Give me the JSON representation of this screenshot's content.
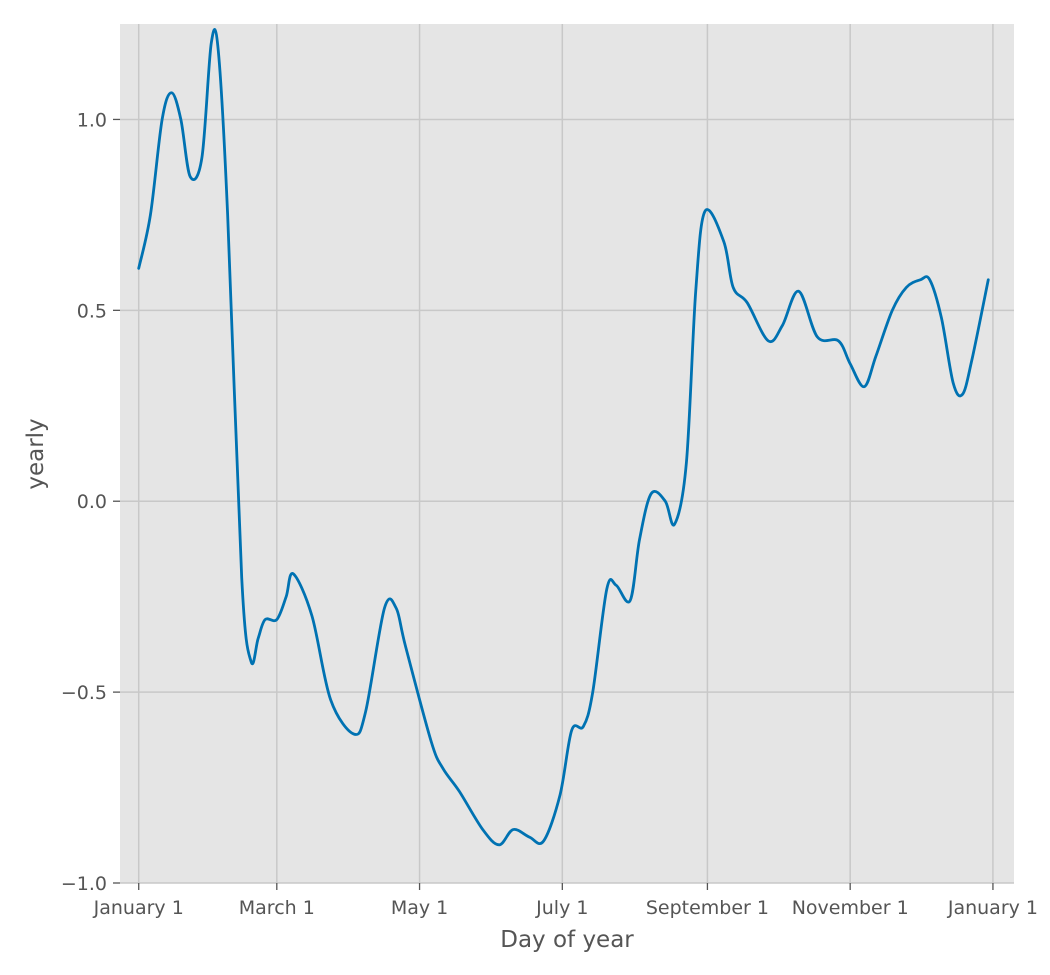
{
  "chart_data": {
    "type": "line",
    "title": "",
    "xlabel": "Day of year",
    "ylabel": "yearly",
    "xlim": [
      "2017-12-24",
      "2019-01-10"
    ],
    "ylim": [
      -1.0,
      1.25
    ],
    "x_ticks": [
      {
        "date": "2018-01-01",
        "label": "January 1"
      },
      {
        "date": "2018-03-01",
        "label": "March 1"
      },
      {
        "date": "2018-05-01",
        "label": "May 1"
      },
      {
        "date": "2018-07-01",
        "label": "July 1"
      },
      {
        "date": "2018-09-01",
        "label": "September 1"
      },
      {
        "date": "2018-11-01",
        "label": "November 1"
      },
      {
        "date": "2019-01-01",
        "label": "January 1"
      }
    ],
    "y_ticks": [
      {
        "value": -1.0,
        "label": "−1.0"
      },
      {
        "value": -0.5,
        "label": "−0.5"
      },
      {
        "value": 0.0,
        "label": "0.0"
      },
      {
        "value": 0.5,
        "label": "0.5"
      },
      {
        "value": 1.0,
        "label": "1.0"
      }
    ],
    "grid": true,
    "background": "#e5e5e5",
    "grid_color": "#c8c8c8",
    "line_color": "#0072b2",
    "series": [
      {
        "x": [
          "2018-01-01",
          "2018-01-06",
          "2018-01-11",
          "2018-01-15",
          "2018-01-19",
          "2018-01-23",
          "2018-01-28",
          "2018-02-01",
          "2018-02-04",
          "2018-02-08",
          "2018-02-14",
          "2018-02-18",
          "2018-02-21",
          "2018-02-24",
          "2018-03-01",
          "2018-03-05",
          "2018-03-08",
          "2018-03-16",
          "2018-03-24",
          "2018-04-03",
          "2018-04-08",
          "2018-04-16",
          "2018-04-21",
          "2018-04-25",
          "2018-05-06",
          "2018-05-11",
          "2018-05-18",
          "2018-05-28",
          "2018-06-04",
          "2018-06-10",
          "2018-06-17",
          "2018-06-23",
          "2018-06-30",
          "2018-07-05",
          "2018-07-10",
          "2018-07-14",
          "2018-07-20",
          "2018-07-24",
          "2018-07-30",
          "2018-08-03",
          "2018-08-08",
          "2018-08-14",
          "2018-08-18",
          "2018-08-23",
          "2018-08-27",
          "2018-08-31",
          "2018-09-08",
          "2018-09-12",
          "2018-09-18",
          "2018-09-27",
          "2018-10-03",
          "2018-10-10",
          "2018-10-18",
          "2018-10-27",
          "2018-11-01",
          "2018-11-07",
          "2018-11-12",
          "2018-11-19",
          "2018-11-25",
          "2018-12-01",
          "2018-12-05",
          "2018-12-10",
          "2018-12-15",
          "2018-12-19",
          "2018-12-23",
          "2018-12-30"
        ],
        "y": [
          0.61,
          0.75,
          1.0,
          1.07,
          1.0,
          0.85,
          0.9,
          1.2,
          1.18,
          0.75,
          -0.2,
          -0.42,
          -0.36,
          -0.31,
          -0.31,
          -0.25,
          -0.19,
          -0.3,
          -0.52,
          -0.61,
          -0.55,
          -0.28,
          -0.28,
          -0.38,
          -0.63,
          -0.7,
          -0.76,
          -0.86,
          -0.9,
          -0.86,
          -0.88,
          -0.89,
          -0.77,
          -0.6,
          -0.59,
          -0.5,
          -0.23,
          -0.22,
          -0.26,
          -0.1,
          0.02,
          0.0,
          -0.06,
          0.1,
          0.55,
          0.76,
          0.68,
          0.56,
          0.52,
          0.42,
          0.46,
          0.55,
          0.43,
          0.42,
          0.36,
          0.3,
          0.38,
          0.5,
          0.56,
          0.58,
          0.58,
          0.48,
          0.31,
          0.28,
          0.37,
          0.58
        ]
      }
    ]
  }
}
